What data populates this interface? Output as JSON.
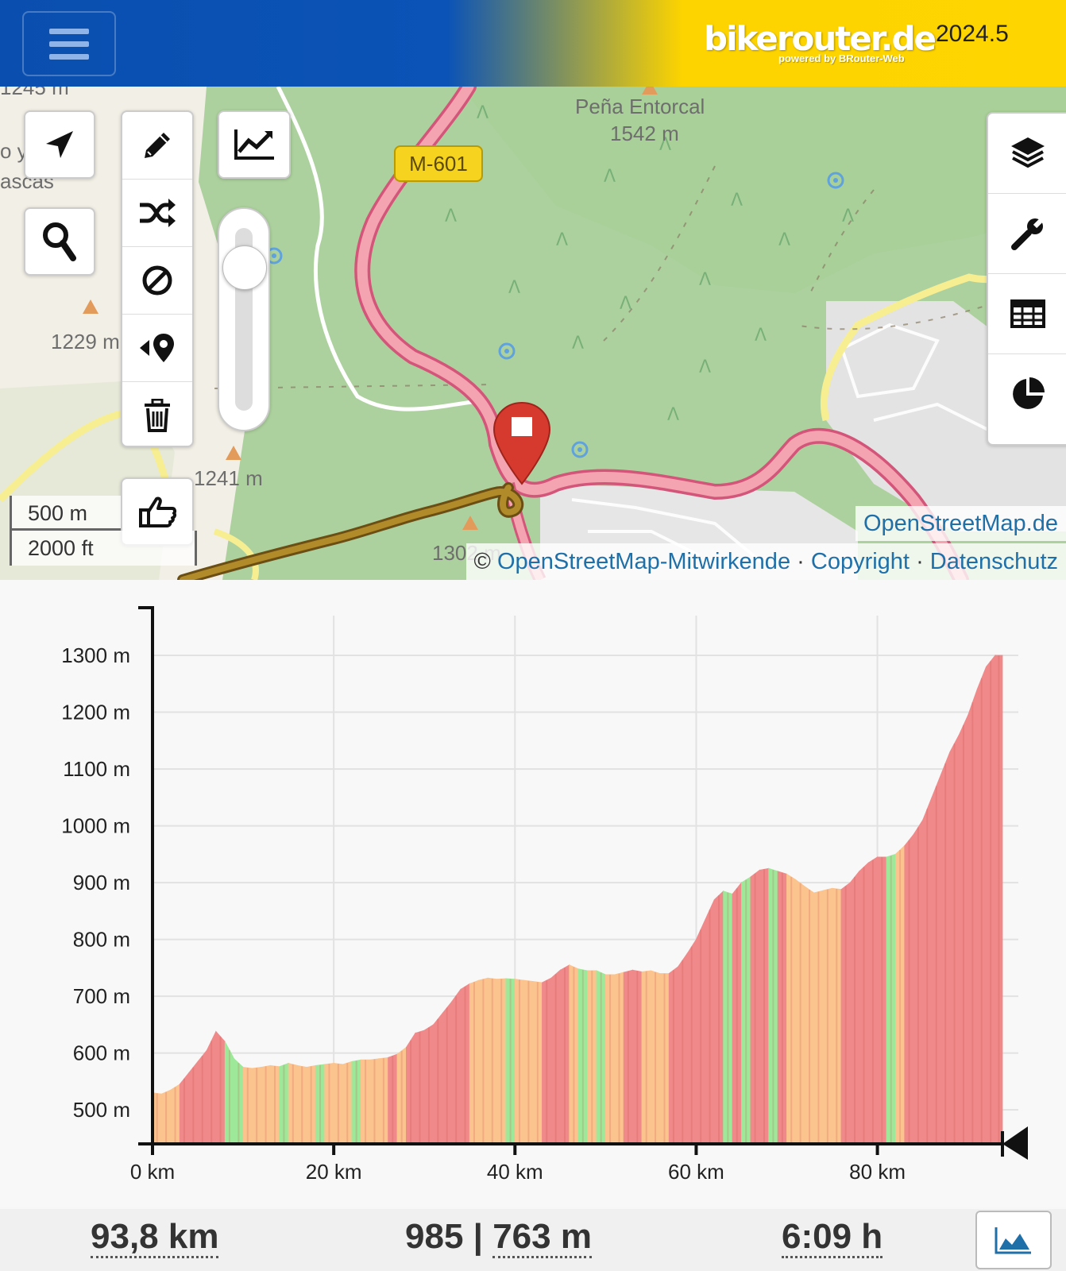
{
  "header": {
    "brand_title": "bikerouter.de",
    "brand_subtitle": "powered by BRouter-Web",
    "version": "2024.5",
    "menu_icon": "hamburger-icon"
  },
  "map": {
    "labels": {
      "peak_name": "Peña Entorcal",
      "peak_elevation": "1542 m",
      "road": "M-601",
      "elev_1229": "1229 m",
      "elev_1241": "1241 m",
      "place_fragment_1": "o y",
      "place_fragment_2": "ascas",
      "elev_top": "1245 m",
      "elev_bottom": "1302 m"
    },
    "left_controls": [
      "locate-icon",
      "search-icon"
    ],
    "draw_tools": [
      "pencil-icon",
      "shuffle-icon",
      "no-go-icon",
      "reverse-route-icon",
      "trash-icon"
    ],
    "elevation_toggle": "chart-line-icon",
    "slider": {
      "value_fraction": 0.88
    },
    "thumbs_icon": "thumbs-up-icon",
    "right_controls": [
      "layers-icon",
      "wrench-icon",
      "table-icon",
      "pie-chart-icon"
    ],
    "scale": {
      "metric": "500 m",
      "imperial": "2000 ft"
    },
    "attribution": {
      "layer": "OpenStreetMap.de",
      "prefix": "©",
      "contributors": "OpenStreetMap-Mitwirkende",
      "sep1": "·",
      "copyright": "Copyright",
      "sep2": "·",
      "privacy": "Datenschutz"
    }
  },
  "chart_data": {
    "type": "area",
    "x_unit": "km",
    "y_unit": "m",
    "xlim": [
      0,
      93.8
    ],
    "ylim": [
      440,
      1370
    ],
    "x_ticks": [
      0,
      20,
      40,
      60,
      80
    ],
    "x_tick_labels": [
      "0 km",
      "20 km",
      "40 km",
      "60 km",
      "80 km"
    ],
    "y_ticks": [
      500,
      600,
      700,
      800,
      900,
      1000,
      1100,
      1200,
      1300
    ],
    "y_tick_labels": [
      "500 m",
      "600 m",
      "700 m",
      "800 m",
      "900 m",
      "1000 m",
      "1100 m",
      "1200 m",
      "1300 m"
    ],
    "grid": true,
    "colors": {
      "climb": "#f08a8a",
      "flat": "#fbc48e",
      "descent": "#9ee89a"
    },
    "x": [
      0,
      1,
      2,
      3,
      4,
      5,
      6,
      7,
      8,
      9,
      10,
      11,
      12,
      13,
      14,
      15,
      16,
      17,
      18,
      19,
      20,
      21,
      22,
      23,
      24,
      25,
      26,
      27,
      28,
      29,
      30,
      31,
      32,
      33,
      34,
      35,
      36,
      37,
      38,
      39,
      40,
      41,
      42,
      43,
      44,
      45,
      46,
      47,
      48,
      49,
      50,
      51,
      52,
      53,
      54,
      55,
      56,
      57,
      58,
      59,
      60,
      61,
      62,
      63,
      64,
      65,
      66,
      67,
      68,
      69,
      70,
      71,
      72,
      73,
      74,
      75,
      76,
      77,
      78,
      79,
      80,
      81,
      82,
      83,
      84,
      85,
      86,
      87,
      88,
      89,
      90,
      91,
      92,
      93,
      93.8
    ],
    "y": [
      530,
      528,
      535,
      545,
      565,
      585,
      605,
      638,
      620,
      590,
      575,
      573,
      575,
      578,
      576,
      582,
      578,
      575,
      578,
      580,
      582,
      580,
      585,
      588,
      588,
      590,
      592,
      598,
      610,
      635,
      640,
      650,
      670,
      690,
      712,
      722,
      728,
      732,
      730,
      731,
      730,
      728,
      726,
      724,
      732,
      746,
      755,
      748,
      745,
      745,
      738,
      738,
      742,
      746,
      743,
      745,
      740,
      740,
      752,
      775,
      800,
      835,
      870,
      885,
      880,
      900,
      910,
      922,
      925,
      920,
      915,
      905,
      893,
      882,
      886,
      890,
      888,
      900,
      920,
      935,
      945,
      945,
      950,
      965,
      985,
      1010,
      1050,
      1090,
      1130,
      1160,
      1195,
      1240,
      1280,
      1300,
      1300
    ],
    "class": [
      "f",
      "f",
      "f",
      "c",
      "c",
      "c",
      "c",
      "c",
      "d",
      "d",
      "f",
      "f",
      "f",
      "f",
      "d",
      "f",
      "f",
      "f",
      "d",
      "f",
      "f",
      "f",
      "d",
      "f",
      "f",
      "f",
      "c",
      "f",
      "c",
      "c",
      "c",
      "c",
      "c",
      "c",
      "c",
      "f",
      "f",
      "f",
      "f",
      "d",
      "f",
      "f",
      "f",
      "c",
      "c",
      "c",
      "f",
      "d",
      "f",
      "d",
      "f",
      "f",
      "c",
      "c",
      "f",
      "f",
      "f",
      "c",
      "c",
      "c",
      "c",
      "c",
      "c",
      "d",
      "c",
      "d",
      "c",
      "c",
      "d",
      "c",
      "f",
      "f",
      "f",
      "f",
      "f",
      "f",
      "c",
      "c",
      "c",
      "c",
      "c",
      "d",
      "f",
      "c",
      "c",
      "c",
      "c",
      "c",
      "c",
      "c",
      "c",
      "c",
      "c",
      "c",
      "c"
    ]
  },
  "summary": {
    "distance": "93,8 km",
    "ascent": "985",
    "sep": "|",
    "descent": "763 m",
    "time": "6:09 h",
    "chart_button_icon": "elevation-chart-icon"
  }
}
